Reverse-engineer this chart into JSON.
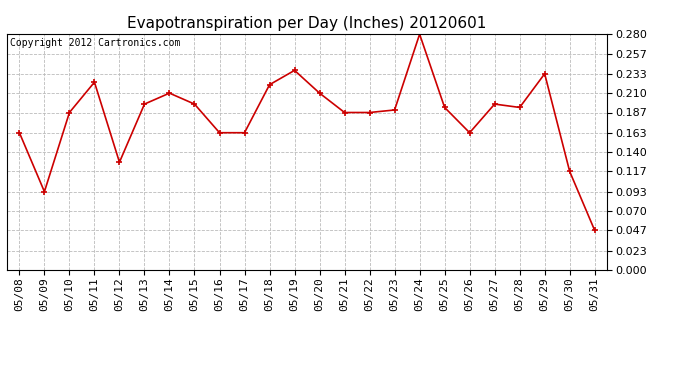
{
  "title": "Evapotranspiration per Day (Inches) 20120601",
  "copyright": "Copyright 2012 Cartronics.com",
  "dates": [
    "05/08",
    "05/09",
    "05/10",
    "05/11",
    "05/12",
    "05/13",
    "05/14",
    "05/15",
    "05/16",
    "05/17",
    "05/18",
    "05/19",
    "05/20",
    "05/21",
    "05/22",
    "05/23",
    "05/24",
    "05/25",
    "05/26",
    "05/27",
    "05/28",
    "05/29",
    "05/30",
    "05/31"
  ],
  "values": [
    0.163,
    0.093,
    0.187,
    0.223,
    0.128,
    0.197,
    0.21,
    0.197,
    0.163,
    0.163,
    0.22,
    0.237,
    0.21,
    0.187,
    0.187,
    0.19,
    0.28,
    0.193,
    0.163,
    0.197,
    0.193,
    0.233,
    0.117,
    0.047
  ],
  "yticks": [
    0.0,
    0.023,
    0.047,
    0.07,
    0.093,
    0.117,
    0.14,
    0.163,
    0.187,
    0.21,
    0.233,
    0.257,
    0.28
  ],
  "ymin": 0.0,
  "ymax": 0.28,
  "line_color": "#cc0000",
  "marker_color": "#cc0000",
  "bg_color": "#ffffff",
  "plot_bg_color": "#ffffff",
  "grid_color": "#bbbbbb",
  "title_fontsize": 11,
  "copyright_fontsize": 7,
  "tick_fontsize": 8
}
